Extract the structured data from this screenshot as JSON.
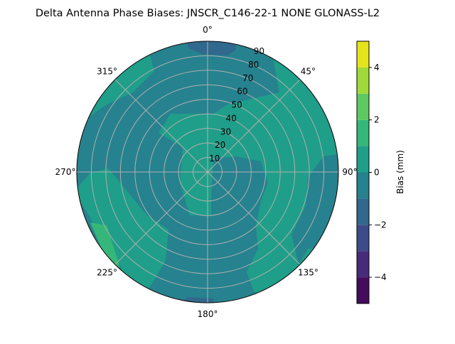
{
  "chart_data": {
    "type": "contour",
    "projection": "polar",
    "title": "Delta Antenna Phase Biases: JNSCR_C146-22-1 NONE GLONASS-L2",
    "theta_zero": "top",
    "theta_direction": "clockwise",
    "angle_ticks": [
      "0°",
      "45°",
      "90°",
      "135°",
      "180°",
      "225°",
      "270°",
      "315°"
    ],
    "radial_ticks": [
      "10",
      "20",
      "30",
      "40",
      "50",
      "60",
      "70",
      "80",
      "90"
    ],
    "rlim": [
      0,
      90
    ],
    "grid": true,
    "colorbar": {
      "label": "Bias (mm)",
      "range": [
        -5,
        5
      ],
      "levels": [
        -5,
        -4,
        -3,
        -2,
        -1,
        0,
        1,
        2,
        3,
        4,
        5
      ],
      "ticks": [
        "−4",
        "−2",
        "0",
        "2",
        "4"
      ],
      "colors": [
        "#450b5c",
        "#472b7a",
        "#3d4b8a",
        "#31688e",
        "#26828e",
        "#1f9e89",
        "#35b779",
        "#5ec962",
        "#a0da39",
        "#e5e41a"
      ],
      "colormap": "viridis"
    },
    "dominant_level": [
      -1,
      0
    ]
  }
}
